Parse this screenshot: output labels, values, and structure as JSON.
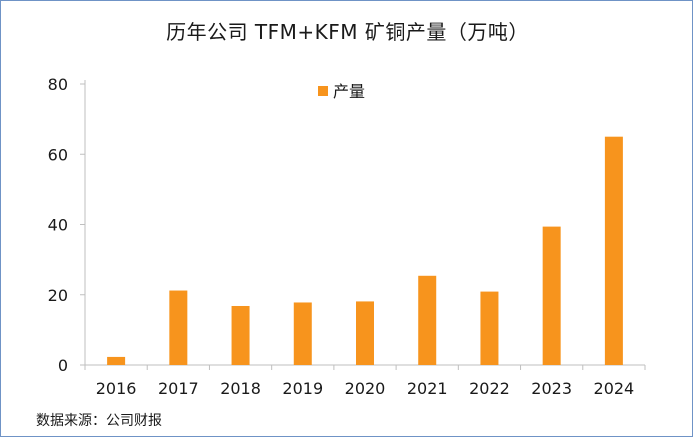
{
  "chart_data": {
    "type": "bar",
    "title": "历年公司 TFM+KFM 矿铜产量（万吨）",
    "categories": [
      "2016",
      "2017",
      "2018",
      "2019",
      "2020",
      "2021",
      "2022",
      "2023",
      "2024"
    ],
    "series": [
      {
        "name": "产量",
        "values": [
          2.3,
          21.2,
          16.8,
          17.8,
          18.1,
          25.4,
          20.9,
          39.4,
          65.0
        ]
      }
    ],
    "yticks": [
      "0",
      "20",
      "40",
      "60",
      "80"
    ],
    "ylim": [
      0,
      80
    ],
    "xlabel": "",
    "ylabel": "",
    "grid": false,
    "legend": "top-center",
    "bar_color": "#f7941d"
  },
  "source_note": "数据来源：公司财报"
}
